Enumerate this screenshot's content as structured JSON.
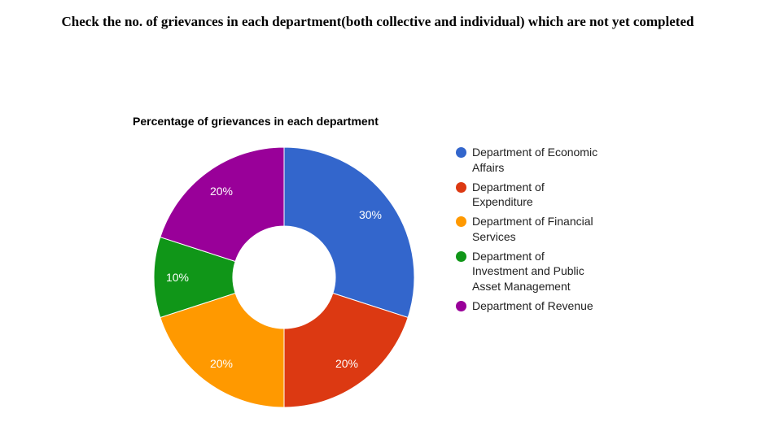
{
  "heading": "Check the no. of grievances in each department(both collective and individual) which are not yet completed",
  "chart_data": {
    "type": "donut",
    "title": "Percentage of grievances in each department",
    "categories": [
      "Department of Economic Affairs",
      "Department of Expenditure",
      "Department of Financial Services",
      "Department of Investment and Public Asset Management",
      "Department of Revenue"
    ],
    "values": [
      30,
      20,
      20,
      10,
      20
    ],
    "value_labels": [
      "30%",
      "20%",
      "20%",
      "10%",
      "20%"
    ],
    "colors": [
      "#3366cc",
      "#dc3912",
      "#ff9900",
      "#109618",
      "#990099"
    ],
    "legend": "right"
  }
}
